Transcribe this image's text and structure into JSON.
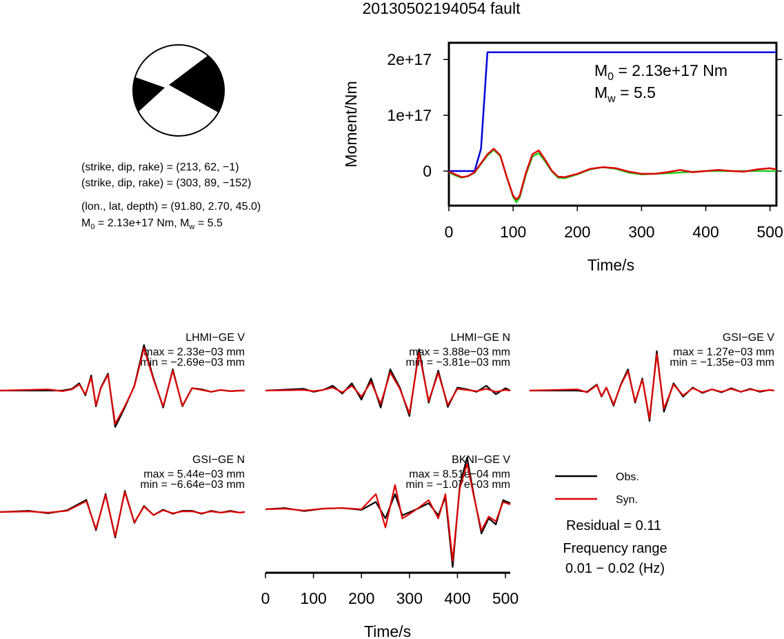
{
  "title": "20130502194054 fault",
  "mechanism": {
    "lines": [
      "(strike, dip, rake) = (213, 62, −1)",
      "(strike, dip, rake) = (303, 89, −152)",
      "(lon., lat, depth) = (91.80, 2.70, 45.0)"
    ],
    "moment_line": {
      "prefix": "M",
      "sub": "0",
      "middle": " = 2.13e+17 Nm, M",
      "sub2": "w",
      "suffix": " = 5.5"
    }
  },
  "moment_panel": {
    "m0": {
      "prefix": "M",
      "sub": "0",
      "suffix": " = 2.13e+17 Nm"
    },
    "mw": {
      "prefix": "M",
      "sub": "w",
      "suffix": " = 5.5"
    }
  },
  "legend": {
    "obs_label": "Obs.",
    "syn_label": "Syn.",
    "residual": "Residual = 0.11",
    "freq_title": "Frequency range",
    "freq_value": "0.01 − 0.02 (Hz)"
  },
  "colors": {
    "obs": "#000000",
    "syn": "#e00000",
    "moment_rate": "#0000dd",
    "cumulative": "#22cc22",
    "beachball_fill": "#000000"
  },
  "chart_data": [
    {
      "type": "line",
      "title": "",
      "xlabel": "Time/s",
      "ylabel": "Moment/Nm",
      "xlim": [
        0,
        510
      ],
      "ylim": [
        -6.2e+16,
        2.3e+17
      ],
      "xticks": [
        0,
        100,
        200,
        300,
        400,
        500
      ],
      "xtick_labels": [
        "0",
        "100",
        "200",
        "300",
        "400",
        "500"
      ],
      "yticks": [
        0,
        1e+17,
        2e+17
      ],
      "ytick_labels": [
        "0",
        "1e+17",
        "2e+17"
      ],
      "series": [
        {
          "key": "blue",
          "x": [
            0,
            40,
            50,
            60,
            510
          ],
          "y": [
            0,
            0,
            4e+16,
            2.13e+17,
            2.13e+17
          ]
        },
        {
          "key": "green",
          "x": [
            0,
            10,
            20,
            30,
            40,
            50,
            60,
            70,
            80,
            90,
            100,
            105,
            110,
            120,
            130,
            140,
            150,
            160,
            170,
            180,
            200,
            220,
            240,
            260,
            280,
            300,
            340,
            400,
            510
          ],
          "y": [
            -2000000000000000.0,
            -8000000000000000.0,
            -1.2e+16,
            -9000000000000000.0,
            -3000000000000000.0,
            1.3e+16,
            2.8e+16,
            3.8e+16,
            2.7e+16,
            -1e+16,
            -4.6e+16,
            -5.6e+16,
            -4.8e+16,
            -6000000000000000.0,
            2.6e+16,
            3.2e+16,
            1.7e+16,
            0,
            -1.2e+16,
            -1.3e+16,
            -6000000000000000.0,
            3000000000000000.0,
            7000000000000000.0,
            4000000000000000.0,
            -3000000000000000.0,
            -6000000000000000.0,
            -4000000000000000.0,
            0,
            0
          ]
        },
        {
          "key": "red",
          "x": [
            0,
            10,
            20,
            30,
            40,
            50,
            60,
            70,
            80,
            90,
            100,
            105,
            110,
            120,
            130,
            140,
            150,
            160,
            170,
            180,
            200,
            220,
            240,
            260,
            280,
            300,
            320,
            340,
            360,
            380,
            400,
            420,
            440,
            460,
            480,
            500,
            510
          ],
          "y": [
            -1000000000000000.0,
            -6000000000000000.0,
            -1.1e+16,
            -9000000000000000.0,
            -2000000000000000.0,
            1.4e+16,
            3e+16,
            4e+16,
            2.8e+16,
            -1e+16,
            -4.4e+16,
            -5.1e+16,
            -4.5e+16,
            -3000000000000000.0,
            3e+16,
            3.7e+16,
            2e+16,
            1000000000000000.0,
            -1e+16,
            -1.1e+16,
            -5000000000000000.0,
            4000000000000000.0,
            7000000000000000.0,
            5000000000000000.0,
            -1000000000000000.0,
            -5000000000000000.0,
            -5000000000000000.0,
            -2000000000000000.0,
            2000000000000000.0,
            -2000000000000000.0,
            0,
            2000000000000000.0,
            0,
            -1000000000000000.0,
            3000000000000000.0,
            5000000000000000.0,
            3000000000000000.0
          ]
        }
      ]
    },
    {
      "type": "line",
      "title": "LHMI−GE V",
      "max_label": "max = 2.33e−03 mm",
      "min_label": "min = −2.69e−03 mm",
      "xlim": [
        0,
        510
      ],
      "ylim": [
        -1,
        1
      ],
      "series": [
        {
          "key": "obs",
          "x": [
            0,
            100,
            130,
            150,
            165,
            178,
            190,
            200,
            210,
            225,
            240,
            260,
            280,
            300,
            320,
            340,
            360,
            380,
            400,
            420,
            440,
            460,
            480,
            500,
            510
          ],
          "y": [
            0,
            0,
            0,
            0.03,
            0.12,
            -0.08,
            0.25,
            -0.26,
            0.05,
            0.28,
            -0.6,
            -0.28,
            0.08,
            0.75,
            0.2,
            -0.28,
            0.35,
            -0.26,
            0.04,
            0.02,
            -0.02,
            0.01,
            -0.01,
            0,
            0
          ]
        },
        {
          "key": "syn",
          "x": [
            0,
            100,
            130,
            150,
            165,
            178,
            190,
            200,
            210,
            225,
            240,
            260,
            280,
            300,
            320,
            340,
            360,
            380,
            400,
            420,
            440,
            460,
            480,
            500,
            510
          ],
          "y": [
            0,
            0.02,
            -0.01,
            0.02,
            0.1,
            -0.06,
            0.22,
            -0.24,
            0.04,
            0.26,
            -0.55,
            -0.26,
            0.07,
            0.7,
            0.18,
            -0.26,
            0.33,
            -0.25,
            0.04,
            0.01,
            -0.02,
            0.01,
            -0.01,
            0,
            0
          ]
        }
      ]
    },
    {
      "type": "line",
      "title": "LHMI−GE N",
      "max_label": "max = 3.88e−03 mm",
      "min_label": "min = −3.81e−03 mm",
      "xlim": [
        0,
        510
      ],
      "ylim": [
        -1,
        1
      ],
      "series": [
        {
          "key": "obs",
          "x": [
            0,
            80,
            100,
            120,
            140,
            160,
            180,
            200,
            220,
            240,
            260,
            280,
            300,
            320,
            340,
            360,
            380,
            400,
            420,
            440,
            460,
            480,
            500,
            510
          ],
          "y": [
            0,
            0.03,
            -0.02,
            0.01,
            0.08,
            -0.05,
            0.12,
            -0.15,
            0.2,
            -0.28,
            0.35,
            0.05,
            -0.42,
            0.68,
            -0.2,
            0.33,
            -0.27,
            0.05,
            0.02,
            -0.02,
            0.08,
            -0.06,
            0.04,
            0
          ]
        },
        {
          "key": "syn",
          "x": [
            0,
            80,
            100,
            120,
            140,
            160,
            180,
            200,
            220,
            240,
            260,
            280,
            300,
            320,
            340,
            360,
            380,
            400,
            420,
            440,
            460,
            480,
            500,
            510
          ],
          "y": [
            0,
            0.01,
            -0.01,
            0.01,
            0.05,
            -0.03,
            0.08,
            -0.1,
            0.14,
            -0.22,
            0.3,
            0.03,
            -0.38,
            0.62,
            -0.17,
            0.29,
            -0.24,
            0.03,
            0.01,
            -0.01,
            0.03,
            -0.02,
            0.01,
            0
          ]
        }
      ]
    },
    {
      "type": "line",
      "title": "GSI−GE V",
      "max_label": "max = 1.27e−03 mm",
      "min_label": "min = −1.35e−03 mm",
      "xlim": [
        0,
        510
      ],
      "ylim": [
        -1,
        1
      ],
      "series": [
        {
          "key": "obs",
          "x": [
            0,
            100,
            120,
            140,
            150,
            160,
            175,
            190,
            205,
            220,
            235,
            250,
            265,
            280,
            300,
            320,
            340,
            360,
            380,
            400,
            420,
            440,
            460,
            480,
            500,
            510
          ],
          "y": [
            0,
            0,
            -0.02,
            0.1,
            -0.1,
            0.05,
            -0.25,
            0.1,
            0.35,
            -0.2,
            0.2,
            -0.5,
            0.65,
            -0.35,
            0.12,
            -0.1,
            0.05,
            -0.04,
            0.02,
            -0.03,
            0.04,
            -0.02,
            0.03,
            -0.02,
            0.01,
            0
          ]
        },
        {
          "key": "syn",
          "x": [
            0,
            100,
            120,
            140,
            150,
            160,
            175,
            190,
            205,
            220,
            235,
            250,
            265,
            280,
            300,
            320,
            340,
            360,
            380,
            400,
            420,
            440,
            460,
            480,
            500,
            510
          ],
          "y": [
            0,
            0.02,
            -0.03,
            0.09,
            -0.09,
            0.05,
            -0.23,
            0.09,
            0.32,
            -0.18,
            0.18,
            -0.46,
            0.6,
            -0.3,
            0.1,
            -0.08,
            0.04,
            -0.03,
            0.02,
            -0.02,
            0.03,
            -0.02,
            0.02,
            -0.01,
            0.01,
            0
          ]
        }
      ]
    },
    {
      "type": "line",
      "title": "GSI−GE N",
      "max_label": "max = 5.44e−03 mm",
      "min_label": "min = −6.64e−03 mm",
      "xlim": [
        0,
        510
      ],
      "ylim": [
        -1,
        1
      ],
      "series": [
        {
          "key": "obs",
          "x": [
            0,
            60,
            100,
            140,
            180,
            200,
            220,
            240,
            260,
            280,
            300,
            320,
            340,
            360,
            380,
            400,
            420,
            440,
            460,
            480,
            500,
            510
          ],
          "y": [
            0,
            0.02,
            -0.02,
            0.03,
            0.2,
            -0.3,
            0.3,
            -0.42,
            0.35,
            -0.18,
            0.1,
            -0.05,
            0.04,
            -0.03,
            0.02,
            0.02,
            -0.03,
            0.02,
            -0.01,
            0.02,
            -0.01,
            0
          ]
        },
        {
          "key": "syn",
          "x": [
            0,
            60,
            100,
            140,
            180,
            200,
            220,
            240,
            260,
            280,
            300,
            320,
            340,
            360,
            380,
            400,
            420,
            440,
            460,
            480,
            500,
            510
          ],
          "y": [
            0,
            0.01,
            -0.01,
            0.02,
            0.18,
            -0.28,
            0.28,
            -0.4,
            0.33,
            -0.17,
            0.09,
            -0.05,
            0.03,
            -0.02,
            0.01,
            0.01,
            -0.02,
            0.01,
            -0.01,
            0.01,
            -0.01,
            0
          ]
        }
      ]
    },
    {
      "type": "line",
      "title": "BKNI−GE V",
      "max_label": "max = 8.51e−04 mm",
      "min_label": "min = −1.07e−03 mm",
      "xlabel": "Time/s",
      "xlim": [
        0,
        510
      ],
      "ylim": [
        -1,
        1
      ],
      "xticks": [
        0,
        100,
        200,
        300,
        400,
        500
      ],
      "xtick_labels": [
        "0",
        "100",
        "200",
        "300",
        "400",
        "500"
      ],
      "series": [
        {
          "key": "obs",
          "x": [
            0,
            40,
            80,
            120,
            160,
            200,
            230,
            250,
            270,
            285,
            300,
            320,
            340,
            360,
            375,
            390,
            405,
            420,
            435,
            450,
            465,
            480,
            495,
            510
          ],
          "y": [
            0,
            0.02,
            -0.03,
            0.01,
            0.02,
            -0.01,
            0.12,
            -0.15,
            0.25,
            -0.1,
            -0.05,
            0.02,
            0.1,
            -0.1,
            0.2,
            -0.95,
            0.4,
            0.85,
            0.2,
            -0.4,
            -0.15,
            -0.25,
            0.15,
            0.1
          ]
        },
        {
          "key": "syn",
          "x": [
            0,
            40,
            80,
            120,
            160,
            200,
            230,
            250,
            270,
            285,
            300,
            320,
            340,
            360,
            375,
            390,
            405,
            420,
            435,
            450,
            465,
            480,
            495,
            510
          ],
          "y": [
            0,
            0.01,
            -0.02,
            0.01,
            0.02,
            0,
            0.25,
            -0.3,
            0.4,
            -0.15,
            -0.08,
            0.03,
            0.15,
            -0.15,
            0.25,
            -0.85,
            0.35,
            0.75,
            0.18,
            -0.35,
            -0.12,
            -0.2,
            0.12,
            0.08
          ]
        }
      ]
    }
  ]
}
